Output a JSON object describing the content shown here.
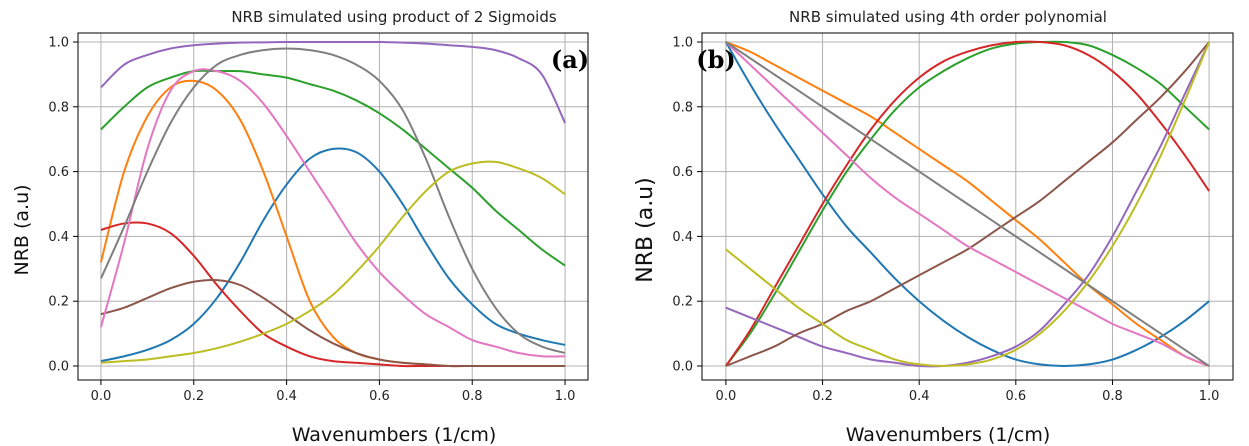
{
  "colors": [
    "#1f77b4",
    "#ff7f0e",
    "#2ca02c",
    "#d62728",
    "#9467bd",
    "#8c564b",
    "#e377c2",
    "#7f7f7f",
    "#bcbd22"
  ],
  "chart_data": [
    {
      "type": "line",
      "title": "NRB simulated using product of 2 Sigmoids",
      "panel_label": "(a)",
      "xlabel": "Wavenumbers (1/cm)",
      "ylabel": "NRB (a.u)",
      "xlim": [
        0,
        1
      ],
      "ylim": [
        0,
        1.05
      ],
      "xticks": [
        "0.0",
        "0.2",
        "0.4",
        "0.6",
        "0.8",
        "1.0"
      ],
      "yticks": [
        "0.0",
        "0.2",
        "0.4",
        "0.6",
        "0.8",
        "1.0"
      ],
      "grid": true,
      "x": [
        0,
        0.05,
        0.1,
        0.15,
        0.2,
        0.25,
        0.3,
        0.35,
        0.4,
        0.45,
        0.5,
        0.55,
        0.6,
        0.65,
        0.7,
        0.75,
        0.8,
        0.85,
        0.9,
        0.95,
        1.0
      ],
      "series": [
        {
          "color": "#1f77b4",
          "values": [
            0.015,
            0.03,
            0.05,
            0.08,
            0.13,
            0.21,
            0.32,
            0.45,
            0.56,
            0.64,
            0.67,
            0.66,
            0.6,
            0.5,
            0.38,
            0.27,
            0.19,
            0.13,
            0.1,
            0.08,
            0.065
          ]
        },
        {
          "color": "#ff7f0e",
          "values": [
            0.32,
            0.6,
            0.77,
            0.86,
            0.88,
            0.85,
            0.76,
            0.6,
            0.4,
            0.2,
            0.09,
            0.04,
            0.02,
            0.01,
            0.005,
            0,
            0,
            0,
            0,
            0,
            0
          ]
        },
        {
          "color": "#2ca02c",
          "values": [
            0.73,
            0.8,
            0.86,
            0.89,
            0.91,
            0.91,
            0.91,
            0.9,
            0.89,
            0.87,
            0.85,
            0.82,
            0.78,
            0.73,
            0.67,
            0.61,
            0.55,
            0.48,
            0.42,
            0.36,
            0.31
          ]
        },
        {
          "color": "#d62728",
          "values": [
            0.42,
            0.44,
            0.44,
            0.41,
            0.34,
            0.25,
            0.17,
            0.1,
            0.06,
            0.03,
            0.015,
            0.01,
            0.005,
            0,
            0,
            0,
            0,
            0,
            0,
            0,
            0
          ]
        },
        {
          "color": "#9467bd",
          "values": [
            0.86,
            0.93,
            0.96,
            0.98,
            0.99,
            0.995,
            0.998,
            0.999,
            1.0,
            1.0,
            1.0,
            1.0,
            1.0,
            0.998,
            0.995,
            0.99,
            0.985,
            0.975,
            0.95,
            0.9,
            0.75
          ]
        },
        {
          "color": "#8c564b",
          "values": [
            0.16,
            0.18,
            0.21,
            0.24,
            0.26,
            0.265,
            0.25,
            0.21,
            0.16,
            0.11,
            0.07,
            0.04,
            0.02,
            0.01,
            0.005,
            0,
            0,
            0,
            0,
            0,
            0
          ]
        },
        {
          "color": "#e377c2",
          "values": [
            0.12,
            0.38,
            0.67,
            0.85,
            0.91,
            0.91,
            0.88,
            0.81,
            0.71,
            0.6,
            0.49,
            0.38,
            0.29,
            0.22,
            0.16,
            0.12,
            0.08,
            0.06,
            0.04,
            0.03,
            0.03
          ]
        },
        {
          "color": "#7f7f7f",
          "values": [
            0.27,
            0.43,
            0.6,
            0.75,
            0.86,
            0.93,
            0.96,
            0.975,
            0.98,
            0.975,
            0.96,
            0.93,
            0.88,
            0.79,
            0.64,
            0.46,
            0.3,
            0.18,
            0.1,
            0.06,
            0.04
          ]
        },
        {
          "color": "#bcbd22",
          "values": [
            0.01,
            0.015,
            0.02,
            0.03,
            0.04,
            0.055,
            0.075,
            0.1,
            0.13,
            0.17,
            0.22,
            0.29,
            0.37,
            0.46,
            0.54,
            0.6,
            0.625,
            0.63,
            0.61,
            0.58,
            0.53
          ]
        }
      ]
    },
    {
      "type": "line",
      "title": "NRB simulated using 4th order polynomial",
      "panel_label": "(b)",
      "xlabel": "Wavenumbers (1/cm)",
      "ylabel": "NRB (a.u)",
      "xlim": [
        0,
        1
      ],
      "ylim": [
        0,
        1.05
      ],
      "xticks": [
        "0.0",
        "0.2",
        "0.4",
        "0.6",
        "0.8",
        "1.0"
      ],
      "yticks": [
        "0.0",
        "0.2",
        "0.4",
        "0.6",
        "0.8",
        "1.0"
      ],
      "grid": true,
      "x": [
        0,
        0.05,
        0.1,
        0.15,
        0.2,
        0.25,
        0.3,
        0.35,
        0.4,
        0.45,
        0.5,
        0.55,
        0.6,
        0.65,
        0.7,
        0.75,
        0.8,
        0.85,
        0.9,
        0.95,
        1.0
      ],
      "series": [
        {
          "color": "#1f77b4",
          "values": [
            1.0,
            0.87,
            0.75,
            0.64,
            0.53,
            0.43,
            0.35,
            0.27,
            0.2,
            0.14,
            0.09,
            0.05,
            0.02,
            0.005,
            0,
            0.005,
            0.02,
            0.05,
            0.09,
            0.14,
            0.2
          ]
        },
        {
          "color": "#ff7f0e",
          "values": [
            1.0,
            0.97,
            0.93,
            0.89,
            0.85,
            0.81,
            0.77,
            0.72,
            0.67,
            0.62,
            0.57,
            0.51,
            0.45,
            0.39,
            0.32,
            0.25,
            0.19,
            0.13,
            0.08,
            0.03,
            0
          ]
        },
        {
          "color": "#2ca02c",
          "values": [
            0,
            0.1,
            0.22,
            0.35,
            0.48,
            0.6,
            0.7,
            0.79,
            0.86,
            0.91,
            0.95,
            0.98,
            0.995,
            1.0,
            1.0,
            0.99,
            0.96,
            0.92,
            0.87,
            0.8,
            0.73
          ]
        },
        {
          "color": "#d62728",
          "values": [
            0,
            0.11,
            0.24,
            0.37,
            0.5,
            0.62,
            0.73,
            0.82,
            0.89,
            0.94,
            0.97,
            0.99,
            1.0,
            1.0,
            0.99,
            0.96,
            0.91,
            0.84,
            0.75,
            0.65,
            0.54
          ]
        },
        {
          "color": "#9467bd",
          "values": [
            0.18,
            0.15,
            0.12,
            0.09,
            0.06,
            0.04,
            0.02,
            0.01,
            0,
            0,
            0.01,
            0.03,
            0.06,
            0.11,
            0.19,
            0.28,
            0.4,
            0.54,
            0.68,
            0.84,
            1.0
          ]
        },
        {
          "color": "#8c564b",
          "values": [
            0,
            0.03,
            0.06,
            0.1,
            0.13,
            0.17,
            0.2,
            0.24,
            0.28,
            0.32,
            0.36,
            0.41,
            0.46,
            0.51,
            0.57,
            0.63,
            0.69,
            0.76,
            0.83,
            0.91,
            1.0
          ]
        },
        {
          "color": "#e377c2",
          "values": [
            1.0,
            0.93,
            0.86,
            0.79,
            0.72,
            0.65,
            0.58,
            0.52,
            0.47,
            0.42,
            0.37,
            0.33,
            0.29,
            0.25,
            0.21,
            0.17,
            0.13,
            0.1,
            0.07,
            0.03,
            0
          ]
        },
        {
          "color": "#7f7f7f",
          "values": [
            1.0,
            0.95,
            0.9,
            0.85,
            0.8,
            0.75,
            0.7,
            0.65,
            0.6,
            0.55,
            0.5,
            0.45,
            0.4,
            0.35,
            0.3,
            0.25,
            0.2,
            0.15,
            0.1,
            0.05,
            0
          ]
        },
        {
          "color": "#bcbd22",
          "values": [
            0.36,
            0.3,
            0.24,
            0.18,
            0.13,
            0.08,
            0.05,
            0.02,
            0.005,
            0,
            0.005,
            0.02,
            0.05,
            0.1,
            0.17,
            0.26,
            0.37,
            0.5,
            0.65,
            0.82,
            1.0
          ]
        }
      ]
    }
  ]
}
